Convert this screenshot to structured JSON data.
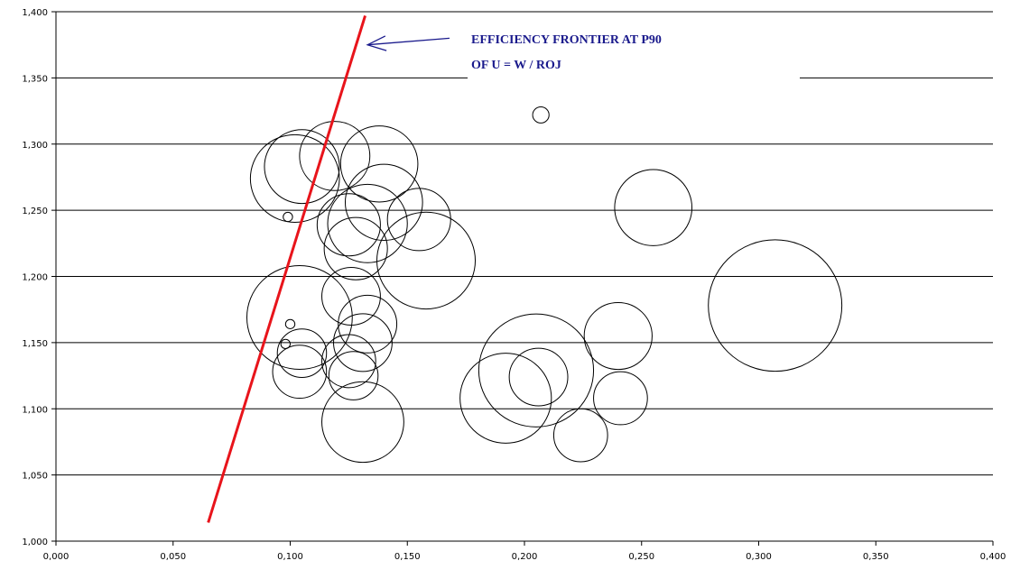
{
  "chart_data": {
    "type": "bubble",
    "title": "",
    "xlabel": "",
    "ylabel": "",
    "xlim": [
      0.0,
      0.4
    ],
    "ylim": [
      1.0,
      1.4
    ],
    "x_ticks": [
      "0,000",
      "0,050",
      "0,100",
      "0,150",
      "0,200",
      "0,250",
      "0,300",
      "0,350",
      "0,400"
    ],
    "y_ticks": [
      "1,000",
      "1,050",
      "1,100",
      "1,150",
      "1,200",
      "1,250",
      "1,300",
      "1,350",
      "1,400"
    ],
    "grid": "horizontal",
    "colors": {
      "bubble": "#000000",
      "frontier": "#e8141b",
      "annotation": "#1a1a8c",
      "grid": "#000000"
    },
    "series": [
      {
        "values": [
          {
            "x": 0.102,
            "y": 1.274,
            "r": 0.019
          },
          {
            "x": 0.105,
            "y": 1.283,
            "r": 0.016
          },
          {
            "x": 0.119,
            "y": 1.291,
            "r": 0.015
          },
          {
            "x": 0.138,
            "y": 1.285,
            "r": 0.0165
          },
          {
            "x": 0.14,
            "y": 1.256,
            "r": 0.0165
          },
          {
            "x": 0.155,
            "y": 1.243,
            "r": 0.0135
          },
          {
            "x": 0.158,
            "y": 1.212,
            "r": 0.021
          },
          {
            "x": 0.133,
            "y": 1.24,
            "r": 0.017
          },
          {
            "x": 0.125,
            "y": 1.239,
            "r": 0.0135
          },
          {
            "x": 0.128,
            "y": 1.221,
            "r": 0.0135
          },
          {
            "x": 0.126,
            "y": 1.185,
            "r": 0.0125
          },
          {
            "x": 0.104,
            "y": 1.169,
            "r": 0.0225
          },
          {
            "x": 0.133,
            "y": 1.164,
            "r": 0.0125
          },
          {
            "x": 0.131,
            "y": 1.15,
            "r": 0.0125
          },
          {
            "x": 0.105,
            "y": 1.142,
            "r": 0.0105
          },
          {
            "x": 0.104,
            "y": 1.128,
            "r": 0.0115
          },
          {
            "x": 0.125,
            "y": 1.136,
            "r": 0.0115
          },
          {
            "x": 0.127,
            "y": 1.125,
            "r": 0.0105
          },
          {
            "x": 0.131,
            "y": 1.09,
            "r": 0.0175
          },
          {
            "x": 0.192,
            "y": 1.108,
            "r": 0.0195
          },
          {
            "x": 0.205,
            "y": 1.129,
            "r": 0.0245
          },
          {
            "x": 0.206,
            "y": 1.124,
            "r": 0.0125
          },
          {
            "x": 0.224,
            "y": 1.08,
            "r": 0.0115
          },
          {
            "x": 0.241,
            "y": 1.108,
            "r": 0.0115
          },
          {
            "x": 0.24,
            "y": 1.155,
            "r": 0.0145
          },
          {
            "x": 0.255,
            "y": 1.252,
            "r": 0.0165
          },
          {
            "x": 0.307,
            "y": 1.178,
            "r": 0.0285
          },
          {
            "x": 0.207,
            "y": 1.322,
            "r": 0.0035
          },
          {
            "x": 0.099,
            "y": 1.245,
            "r": 0.002
          },
          {
            "x": 0.1,
            "y": 1.164,
            "r": 0.002
          },
          {
            "x": 0.098,
            "y": 1.149,
            "r": 0.002
          }
        ]
      }
    ],
    "frontier": {
      "x": [
        0.065,
        0.132
      ],
      "y": [
        1.014,
        1.397
      ]
    },
    "annotation": {
      "lines": [
        "EFFICIENCY FRONTIER AT P90",
        "OF U = W / ROJ"
      ],
      "arrow_to": {
        "x": 0.133,
        "y": 1.375
      },
      "arrow_from": {
        "x": 0.168,
        "y": 1.38
      }
    }
  }
}
